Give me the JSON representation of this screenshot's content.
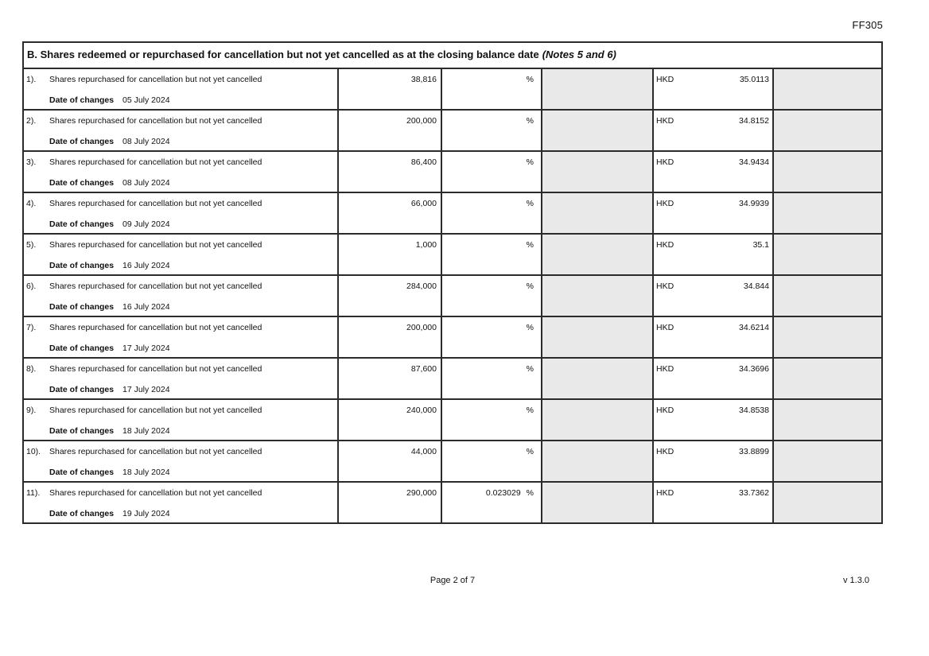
{
  "page": {
    "form_code": "FF305",
    "footer": {
      "page_indicator": "Page 2 of 7",
      "version": "v 1.3.0"
    }
  },
  "section_b": {
    "title_main": "B. Shares redeemed or repurchased for cancellation but not yet cancelled as at the closing balance date",
    "title_notes": "(Notes 5 and 6)",
    "description": "Shares repurchased for cancellation but not yet cancelled",
    "date_label": "Date of changes",
    "percent_sign": "%",
    "currency": "HKD",
    "rows": [
      {
        "num": "1).",
        "shares": "38,816",
        "percent": "",
        "price": "35.0113",
        "date": "05 July 2024"
      },
      {
        "num": "2).",
        "shares": "200,000",
        "percent": "",
        "price": "34.8152",
        "date": "08 July 2024"
      },
      {
        "num": "3).",
        "shares": "86,400",
        "percent": "",
        "price": "34.9434",
        "date": "08 July 2024"
      },
      {
        "num": "4).",
        "shares": "66,000",
        "percent": "",
        "price": "34.9939",
        "date": "09 July 2024"
      },
      {
        "num": "5).",
        "shares": "1,000",
        "percent": "",
        "price": "35.1",
        "date": "16 July 2024"
      },
      {
        "num": "6).",
        "shares": "284,000",
        "percent": "",
        "price": "34.844",
        "date": "16 July 2024"
      },
      {
        "num": "7).",
        "shares": "200,000",
        "percent": "",
        "price": "34.6214",
        "date": "17 July 2024"
      },
      {
        "num": "8).",
        "shares": "87,600",
        "percent": "",
        "price": "34.3696",
        "date": "17 July 2024"
      },
      {
        "num": "9).",
        "shares": "240,000",
        "percent": "",
        "price": "34.8538",
        "date": "18 July 2024"
      },
      {
        "num": "10).",
        "shares": "44,000",
        "percent": "",
        "price": "33.8899",
        "date": "18 July 2024"
      },
      {
        "num": "11).",
        "shares": "290,000",
        "percent": "0.023029",
        "price": "33.7362",
        "date": "19 July 2024"
      }
    ]
  },
  "colors": {
    "shaded_cell": "#e9e9e9",
    "border": "#2b2b2b"
  }
}
